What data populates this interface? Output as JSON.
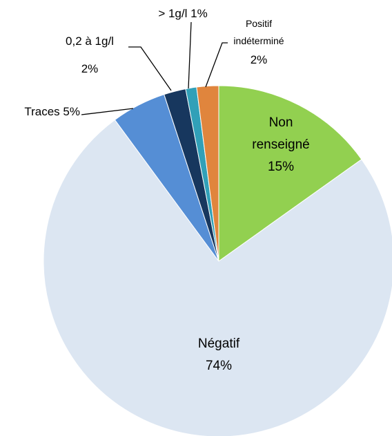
{
  "chart_data": {
    "type": "pie",
    "categories": [
      "Non renseigné",
      "Négatif",
      "Traces",
      "0,2 à 1g/l",
      "> 1g/l",
      "Positif indéterminé"
    ],
    "values": [
      15,
      74,
      5,
      2,
      1,
      2
    ],
    "value_labels": [
      "15%",
      "74%",
      "5%",
      "2%",
      "1%",
      "2%"
    ],
    "colors": [
      "#92d050",
      "#dce6f2",
      "#558ed5",
      "#17375e",
      "#31a0b8",
      "#e0853d"
    ]
  }
}
